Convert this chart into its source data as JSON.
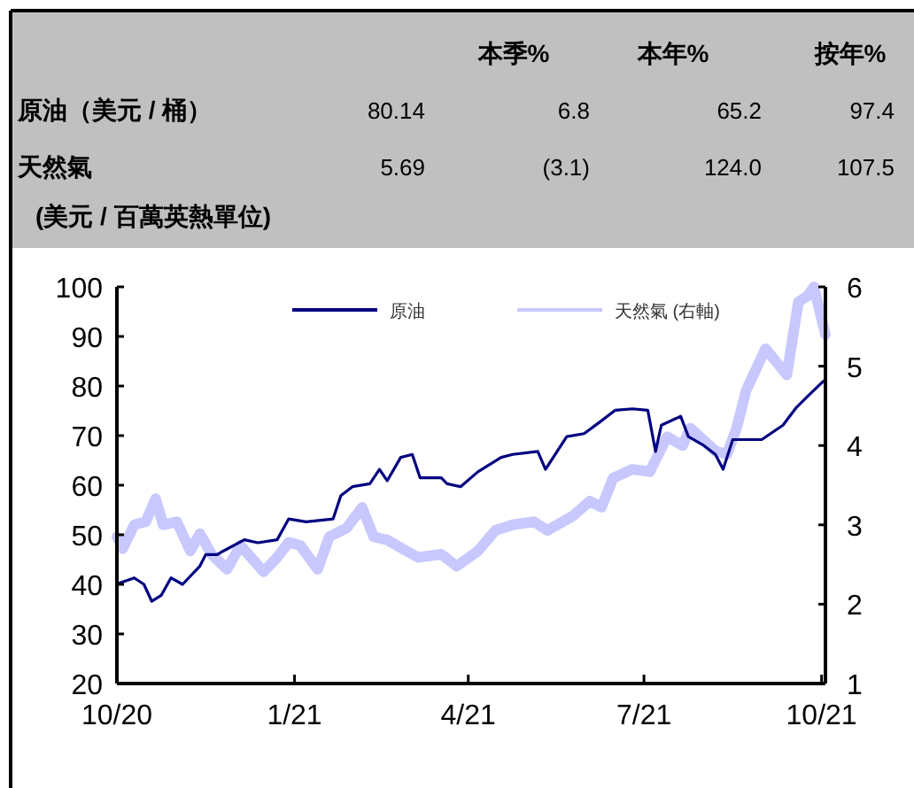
{
  "chart_data": {
    "type": "line",
    "annotations": [
      "本季%",
      "本年%",
      "按年%",
      "原油（美元 / 桶）",
      "80.14",
      "6.8",
      "65.2",
      "97.4",
      "天然氣",
      "5.69",
      "(3.1)",
      "124.0",
      "107.5",
      "(美元 / 百萬英熱單位)"
    ],
    "xlim": [
      "2020-10-01",
      "2021-10-03"
    ],
    "xticks": [
      {
        "value": "2020-10-01",
        "label": "10/20"
      },
      {
        "value": "2021-01-01",
        "label": "1/21"
      },
      {
        "value": "2021-04-01",
        "label": "4/21"
      },
      {
        "value": "2021-07-01",
        "label": "7/21"
      },
      {
        "value": "2021-10-01",
        "label": "10/21"
      }
    ],
    "ylim": [
      20,
      100
    ],
    "yticks": [
      20,
      30,
      40,
      50,
      60,
      70,
      80,
      90,
      100
    ],
    "y2lim": [
      1,
      6
    ],
    "y2ticks": [
      1,
      2,
      3,
      4,
      5,
      6
    ],
    "legend": "top",
    "grid": false,
    "series": [
      {
        "name": "原油",
        "color": "#000080",
        "x": [
          "2020-10-01",
          "2020-10-10",
          "2020-10-15",
          "2020-10-19",
          "2020-10-24",
          "2020-10-29",
          "2020-11-04",
          "2020-11-13",
          "2020-11-16",
          "2020-11-22",
          "2020-11-25",
          "2020-12-06",
          "2020-12-13",
          "2020-12-23",
          "2020-12-29",
          "2021-01-07",
          "2021-01-21",
          "2021-01-25",
          "2021-01-31",
          "2021-02-09",
          "2021-02-14",
          "2021-02-18",
          "2021-02-25",
          "2021-03-03",
          "2021-03-07",
          "2021-03-15",
          "2021-03-18",
          "2021-03-21",
          "2021-03-28",
          "2021-04-06",
          "2021-04-18",
          "2021-04-24",
          "2021-05-07",
          "2021-05-11",
          "2021-05-22",
          "2021-05-31",
          "2021-06-08",
          "2021-06-16",
          "2021-06-25",
          "2021-07-03",
          "2021-07-07",
          "2021-07-10",
          "2021-07-20",
          "2021-07-24",
          "2021-08-01",
          "2021-08-07",
          "2021-08-11",
          "2021-08-16",
          "2021-08-31",
          "2021-09-11",
          "2021-09-18",
          "2021-09-24",
          "2021-10-02"
        ],
        "values": [
          40.1,
          41.3,
          40,
          36.6,
          37.8,
          41.3,
          40,
          43.7,
          46,
          46,
          46.7,
          49,
          48.4,
          49,
          53.2,
          52.6,
          53.2,
          57.9,
          59.7,
          60.3,
          63.2,
          60.9,
          65.6,
          66.2,
          61.5,
          61.5,
          61.5,
          60.3,
          59.7,
          62.7,
          65.6,
          66.2,
          66.8,
          63.2,
          69.8,
          70.4,
          72.7,
          75.1,
          75.4,
          75.1,
          66.8,
          72.1,
          73.9,
          69.8,
          68,
          66.2,
          63.2,
          69.2,
          69.2,
          72.1,
          75.7,
          78,
          81
        ]
      },
      {
        "name": "天然氣 (右軸)",
        "color": "#c8c8ff",
        "axis": "y2",
        "x": [
          "2020-10-01",
          "2020-10-04",
          "2020-10-10",
          "2020-10-16",
          "2020-10-21",
          "2020-10-25",
          "2020-11-01",
          "2020-11-08",
          "2020-11-13",
          "2020-11-19",
          "2020-11-27",
          "2020-12-04",
          "2020-12-16",
          "2020-12-23",
          "2020-12-29",
          "2021-01-04",
          "2021-01-13",
          "2021-01-19",
          "2021-01-28",
          "2021-02-05",
          "2021-02-11",
          "2021-02-18",
          "2021-02-28",
          "2021-03-06",
          "2021-03-18",
          "2021-03-26",
          "2021-04-06",
          "2021-04-15",
          "2021-04-24",
          "2021-05-05",
          "2021-05-12",
          "2021-05-25",
          "2021-06-03",
          "2021-06-09",
          "2021-06-15",
          "2021-06-25",
          "2021-07-04",
          "2021-07-13",
          "2021-07-21",
          "2021-07-25",
          "2021-08-07",
          "2021-08-13",
          "2021-08-18",
          "2021-08-23",
          "2021-09-02",
          "2021-09-07",
          "2021-09-13",
          "2021-09-19",
          "2021-09-24",
          "2021-09-27",
          "2021-10-03"
        ],
        "values": [
          2.85,
          2.7,
          3.0,
          3.04,
          3.33,
          3.0,
          3.04,
          2.67,
          2.89,
          2.63,
          2.44,
          2.74,
          2.41,
          2.59,
          2.78,
          2.74,
          2.44,
          2.85,
          2.96,
          3.22,
          2.85,
          2.81,
          2.67,
          2.59,
          2.63,
          2.48,
          2.67,
          2.93,
          3.0,
          3.04,
          2.93,
          3.11,
          3.3,
          3.22,
          3.59,
          3.7,
          3.67,
          4.11,
          4.0,
          4.22,
          3.93,
          3.89,
          4.22,
          4.7,
          5.22,
          5.07,
          4.89,
          5.81,
          5.89,
          6.0,
          5.4
        ]
      }
    ]
  }
}
